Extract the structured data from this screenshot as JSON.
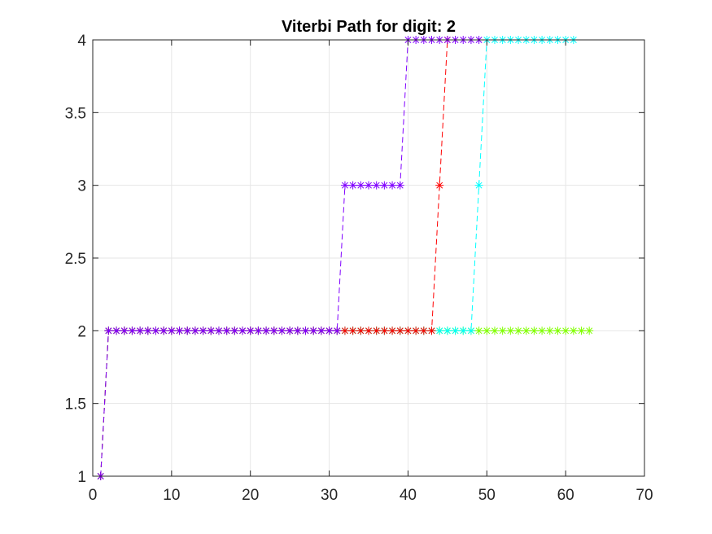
{
  "chart_data": {
    "type": "line",
    "title": "Viterbi Path for digit: 2",
    "xlabel": "",
    "ylabel": "",
    "xlim": [
      0,
      70
    ],
    "ylim": [
      1,
      4
    ],
    "xticks": [
      "0",
      "10",
      "20",
      "30",
      "40",
      "50",
      "60",
      "70"
    ],
    "yticks": [
      "1",
      "1.5",
      "2",
      "2.5",
      "3",
      "3.5",
      "4"
    ],
    "grid": true,
    "legend": "none",
    "line_style": "dashed",
    "marker": "asterisk",
    "series": [
      {
        "color": "#80ff00",
        "x": [
          1,
          2,
          3,
          4,
          5,
          6,
          7,
          8,
          9,
          10,
          11,
          12,
          13,
          14,
          15,
          16,
          17,
          18,
          19,
          20,
          21,
          22,
          23,
          24,
          25,
          26,
          27,
          28,
          29,
          30,
          31,
          32,
          33,
          34,
          35,
          36,
          37,
          38,
          39,
          40,
          41,
          42,
          43,
          44,
          45,
          46,
          47,
          48,
          49,
          50,
          51,
          52,
          53,
          54,
          55,
          56,
          57,
          58,
          59,
          60,
          61,
          62,
          63
        ],
        "y": [
          1,
          2,
          2,
          2,
          2,
          2,
          2,
          2,
          2,
          2,
          2,
          2,
          2,
          2,
          2,
          2,
          2,
          2,
          2,
          2,
          2,
          2,
          2,
          2,
          2,
          2,
          2,
          2,
          2,
          2,
          2,
          2,
          2,
          2,
          2,
          2,
          2,
          2,
          2,
          2,
          2,
          2,
          2,
          2,
          2,
          2,
          2,
          2,
          2,
          2,
          2,
          2,
          2,
          2,
          2,
          2,
          2,
          2,
          2,
          2,
          2,
          2,
          2
        ]
      },
      {
        "color": "#00ffff",
        "x": [
          1,
          2,
          3,
          4,
          5,
          6,
          7,
          8,
          9,
          10,
          11,
          12,
          13,
          14,
          15,
          16,
          17,
          18,
          19,
          20,
          21,
          22,
          23,
          24,
          25,
          26,
          27,
          28,
          29,
          30,
          31,
          32,
          33,
          34,
          35,
          36,
          37,
          38,
          39,
          40,
          41,
          42,
          43,
          44,
          45,
          46,
          47,
          48,
          49,
          50,
          51,
          52,
          53,
          54,
          55,
          56,
          57,
          58,
          59,
          60,
          61
        ],
        "y": [
          1,
          2,
          2,
          2,
          2,
          2,
          2,
          2,
          2,
          2,
          2,
          2,
          2,
          2,
          2,
          2,
          2,
          2,
          2,
          2,
          2,
          2,
          2,
          2,
          2,
          2,
          2,
          2,
          2,
          2,
          2,
          2,
          2,
          2,
          2,
          2,
          2,
          2,
          2,
          2,
          2,
          2,
          2,
          2,
          2,
          2,
          2,
          2,
          3,
          4,
          4,
          4,
          4,
          4,
          4,
          4,
          4,
          4,
          4,
          4,
          4
        ]
      },
      {
        "color": "#ff0000",
        "x": [
          1,
          2,
          3,
          4,
          5,
          6,
          7,
          8,
          9,
          10,
          11,
          12,
          13,
          14,
          15,
          16,
          17,
          18,
          19,
          20,
          21,
          22,
          23,
          24,
          25,
          26,
          27,
          28,
          29,
          30,
          31,
          32,
          33,
          34,
          35,
          36,
          37,
          38,
          39,
          40,
          41,
          42,
          43,
          44,
          45
        ],
        "y": [
          1,
          2,
          2,
          2,
          2,
          2,
          2,
          2,
          2,
          2,
          2,
          2,
          2,
          2,
          2,
          2,
          2,
          2,
          2,
          2,
          2,
          2,
          2,
          2,
          2,
          2,
          2,
          2,
          2,
          2,
          2,
          2,
          2,
          2,
          2,
          2,
          2,
          2,
          2,
          2,
          2,
          2,
          2,
          3,
          4
        ]
      },
      {
        "color": "#8000ff",
        "x": [
          1,
          2,
          3,
          4,
          5,
          6,
          7,
          8,
          9,
          10,
          11,
          12,
          13,
          14,
          15,
          16,
          17,
          18,
          19,
          20,
          21,
          22,
          23,
          24,
          25,
          26,
          27,
          28,
          29,
          30,
          31,
          32,
          33,
          34,
          35,
          36,
          37,
          38,
          39,
          40,
          41,
          42,
          43,
          44,
          45,
          46,
          47,
          48,
          49
        ],
        "y": [
          1,
          2,
          2,
          2,
          2,
          2,
          2,
          2,
          2,
          2,
          2,
          2,
          2,
          2,
          2,
          2,
          2,
          2,
          2,
          2,
          2,
          2,
          2,
          2,
          2,
          2,
          2,
          2,
          2,
          2,
          2,
          3,
          3,
          3,
          3,
          3,
          3,
          3,
          3,
          4,
          4,
          4,
          4,
          4,
          4,
          4,
          4,
          4,
          4
        ]
      }
    ]
  }
}
